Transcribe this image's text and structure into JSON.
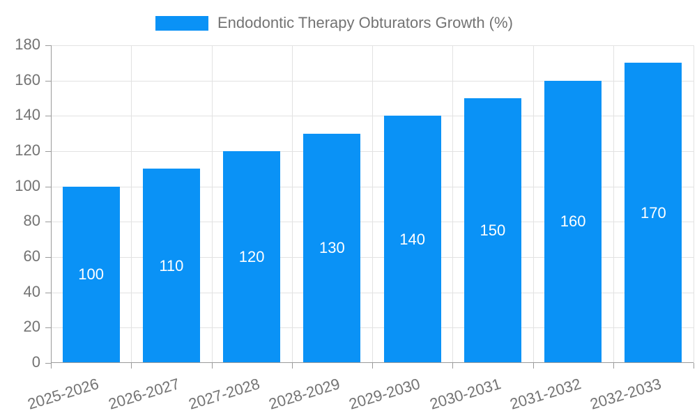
{
  "legend": {
    "label": "Endodontic Therapy Obturators Growth (%)",
    "swatch_color": "#0a92f6"
  },
  "chart_data": {
    "type": "bar",
    "title": "Endodontic Therapy Obturators Growth (%)",
    "categories": [
      "2025-2026",
      "2026-2027",
      "2027-2028",
      "2028-2029",
      "2029-2030",
      "2030-2031",
      "2031-2032",
      "2032-2033"
    ],
    "values": [
      100,
      110,
      120,
      130,
      140,
      150,
      160,
      170
    ],
    "bar_value_labels": [
      "100",
      "110",
      "120",
      "130",
      "140",
      "150",
      "160",
      "170"
    ],
    "xlabel": "",
    "ylabel": "",
    "ylim": [
      0,
      180
    ],
    "ytick_step": 20,
    "yticks": [
      0,
      20,
      40,
      60,
      80,
      100,
      120,
      140,
      160,
      180
    ],
    "grid": true,
    "legend_position": "top-center",
    "bar_color": "#0a92f6",
    "value_label_color": "#ffffff"
  },
  "colors": {
    "bar": "#0a92f6",
    "grid": "#e2e2e2",
    "axis": "#9a9a9a",
    "text": "#737373",
    "background": "#ffffff"
  }
}
